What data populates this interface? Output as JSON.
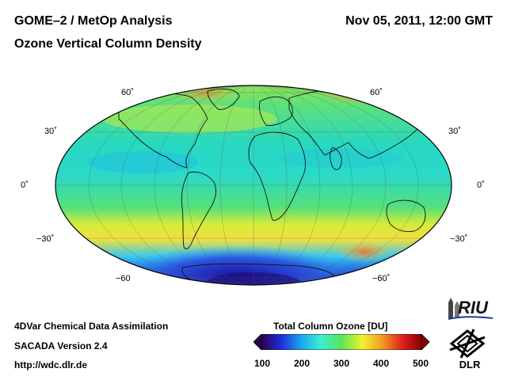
{
  "header": {
    "title": "GOME–2 / MetOp Analysis",
    "subtitle": "Ozone Vertical Column Density",
    "datetime": "Nov 05, 2011, 12:00 GMT"
  },
  "map": {
    "projection": "Mollweide",
    "lat_labels_left": [
      "60˚",
      "30˚",
      "0˚",
      "−30˚",
      "−60"
    ],
    "lat_labels_right": [
      "60˚",
      "30˚",
      "0˚",
      "−30˚",
      "−60˚"
    ],
    "colors": {
      "background_field": "#3be6a0",
      "high_north": "#f39a3a",
      "antarctic_low": "#2a3fd8",
      "mid_south_band": "#f0e040"
    }
  },
  "colorbar": {
    "title": "Total Column Ozone [DU]",
    "ticks": [
      "100",
      "200",
      "300",
      "400",
      "500"
    ],
    "range": [
      100,
      500
    ],
    "stops": [
      "#2a0050",
      "#1e2bd8",
      "#18a8f0",
      "#3cf0d0",
      "#5ae65a",
      "#f0f030",
      "#f0a020",
      "#e02020",
      "#8a0000"
    ]
  },
  "footer": {
    "line1": "4DVar Chemical Data Assimilation",
    "line2": "SACADA Version 2.4",
    "line3": "http://wdc.dlr.de"
  },
  "logos": {
    "riu": "RIU",
    "dlr": "DLR"
  }
}
